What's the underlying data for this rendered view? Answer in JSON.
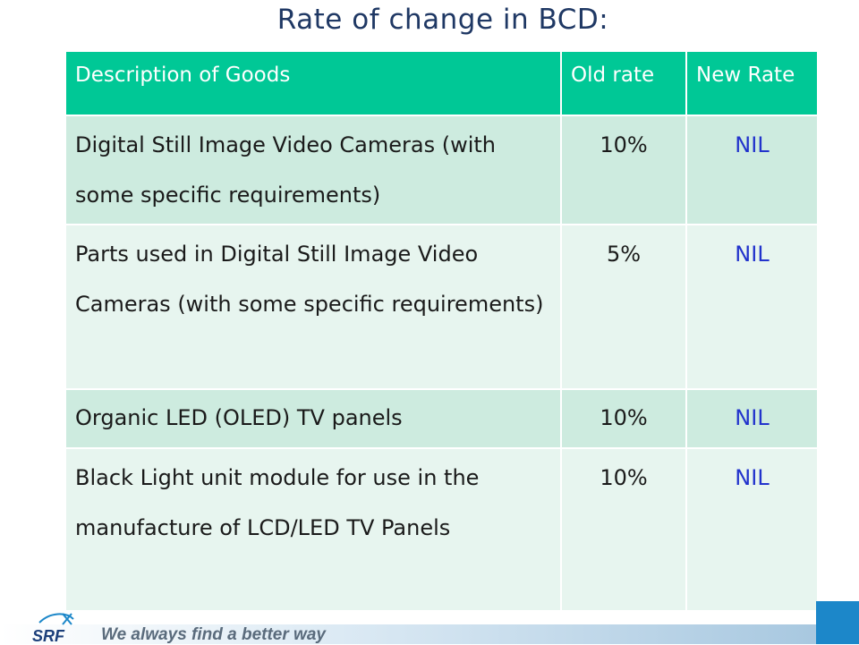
{
  "page": {
    "title": "Rate of change in BCD:"
  },
  "table": {
    "headers": {
      "description": "Description of Goods",
      "old_rate": "Old rate",
      "new_rate": "New Rate"
    },
    "rows": [
      {
        "description": "Digital Still Image Video Cameras (with some specific requirements)",
        "old_rate": "10%",
        "new_rate": "NIL"
      },
      {
        "description": "Parts used in Digital Still Image Video Cameras (with some specific requirements)",
        "old_rate": "5%",
        "new_rate": "NIL"
      },
      {
        "description": "Organic LED (OLED) TV panels",
        "old_rate": "10%",
        "new_rate": "NIL"
      },
      {
        "description": "Black Light unit module for use in the manufacture of LCD/LED TV Panels",
        "old_rate": "10%",
        "new_rate": "NIL"
      }
    ]
  },
  "footer": {
    "logo_text": "SRF",
    "tagline": "We always find a better way"
  },
  "colors": {
    "header_bg": "#00c896",
    "row_dark": "#cdebdf",
    "row_light": "#e7f5ef",
    "title": "#1f3864",
    "nil_text": "#2233cc",
    "brand_blue": "#1c87c9"
  }
}
